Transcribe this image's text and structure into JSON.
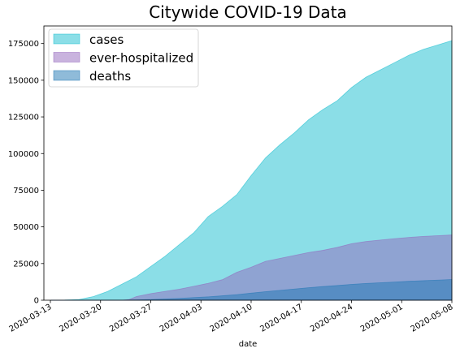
{
  "chart_data": {
    "type": "area",
    "stacked": false,
    "title": "Citywide COVID-19 Data",
    "xlabel": "date",
    "ylabel": "",
    "x_axis_type": "date",
    "xlim": [
      "2020-03-13",
      "2020-05-08"
    ],
    "ylim": [
      0,
      187000
    ],
    "yticks": [
      0,
      25000,
      50000,
      75000,
      100000,
      125000,
      150000,
      175000
    ],
    "ytick_labels": [
      "0",
      "25000",
      "50000",
      "75000",
      "100000",
      "125000",
      "150000",
      "175000"
    ],
    "xticks": [
      "2020-03-13",
      "2020-03-20",
      "2020-03-27",
      "2020-04-03",
      "2020-04-10",
      "2020-04-17",
      "2020-04-24",
      "2020-05-01",
      "2020-05-08"
    ],
    "grid": false,
    "legend_position": "upper-left",
    "series": [
      {
        "name": "cases",
        "color": "#17becf",
        "points": [
          [
            "2020-03-13",
            0
          ],
          [
            "2020-03-15",
            100
          ],
          [
            "2020-03-17",
            500
          ],
          [
            "2020-03-19",
            2500
          ],
          [
            "2020-03-21",
            6000
          ],
          [
            "2020-03-23",
            11000
          ],
          [
            "2020-03-25",
            16000
          ],
          [
            "2020-03-27",
            23000
          ],
          [
            "2020-03-29",
            30000
          ],
          [
            "2020-03-31",
            38000
          ],
          [
            "2020-04-02",
            46000
          ],
          [
            "2020-04-04",
            57000
          ],
          [
            "2020-04-06",
            64000
          ],
          [
            "2020-04-08",
            72000
          ],
          [
            "2020-04-10",
            85000
          ],
          [
            "2020-04-12",
            97000
          ],
          [
            "2020-04-14",
            106000
          ],
          [
            "2020-04-16",
            114000
          ],
          [
            "2020-04-18",
            123000
          ],
          [
            "2020-04-20",
            130000
          ],
          [
            "2020-04-22",
            136000
          ],
          [
            "2020-04-24",
            145000
          ],
          [
            "2020-04-26",
            152000
          ],
          [
            "2020-04-28",
            157000
          ],
          [
            "2020-04-30",
            162000
          ],
          [
            "2020-05-02",
            167000
          ],
          [
            "2020-05-04",
            171000
          ],
          [
            "2020-05-06",
            174000
          ],
          [
            "2020-05-08",
            177000
          ]
        ]
      },
      {
        "name": "ever-hospitalized",
        "color": "#9467bd",
        "points": [
          [
            "2020-03-13",
            0
          ],
          [
            "2020-03-15",
            0
          ],
          [
            "2020-03-17",
            0
          ],
          [
            "2020-03-19",
            0
          ],
          [
            "2020-03-21",
            0
          ],
          [
            "2020-03-23",
            0
          ],
          [
            "2020-03-24",
            500
          ],
          [
            "2020-03-25",
            2500
          ],
          [
            "2020-03-27",
            4500
          ],
          [
            "2020-03-29",
            6000
          ],
          [
            "2020-03-31",
            7500
          ],
          [
            "2020-04-02",
            9500
          ],
          [
            "2020-04-04",
            11500
          ],
          [
            "2020-04-06",
            14000
          ],
          [
            "2020-04-08",
            19000
          ],
          [
            "2020-04-10",
            22500
          ],
          [
            "2020-04-12",
            26500
          ],
          [
            "2020-04-14",
            28500
          ],
          [
            "2020-04-16",
            30500
          ],
          [
            "2020-04-18",
            32500
          ],
          [
            "2020-04-20",
            34000
          ],
          [
            "2020-04-22",
            36000
          ],
          [
            "2020-04-24",
            38500
          ],
          [
            "2020-04-26",
            40000
          ],
          [
            "2020-04-28",
            41000
          ],
          [
            "2020-04-30",
            42000
          ],
          [
            "2020-05-02",
            42800
          ],
          [
            "2020-05-04",
            43500
          ],
          [
            "2020-05-06",
            44000
          ],
          [
            "2020-05-08",
            44500
          ]
        ]
      },
      {
        "name": "deaths",
        "color": "#1f77b4",
        "points": [
          [
            "2020-03-13",
            0
          ],
          [
            "2020-03-15",
            0
          ],
          [
            "2020-03-17",
            0
          ],
          [
            "2020-03-19",
            0
          ],
          [
            "2020-03-21",
            0
          ],
          [
            "2020-03-23",
            0
          ],
          [
            "2020-03-25",
            200
          ],
          [
            "2020-03-27",
            500
          ],
          [
            "2020-03-29",
            800
          ],
          [
            "2020-03-31",
            1200
          ],
          [
            "2020-04-02",
            1800
          ],
          [
            "2020-04-04",
            2300
          ],
          [
            "2020-04-06",
            3000
          ],
          [
            "2020-04-08",
            3800
          ],
          [
            "2020-04-10",
            4800
          ],
          [
            "2020-04-12",
            5800
          ],
          [
            "2020-04-14",
            6700
          ],
          [
            "2020-04-16",
            7600
          ],
          [
            "2020-04-18",
            8500
          ],
          [
            "2020-04-20",
            9300
          ],
          [
            "2020-04-22",
            10000
          ],
          [
            "2020-04-24",
            10800
          ],
          [
            "2020-04-26",
            11400
          ],
          [
            "2020-04-28",
            11900
          ],
          [
            "2020-04-30",
            12400
          ],
          [
            "2020-05-02",
            12900
          ],
          [
            "2020-05-04",
            13300
          ],
          [
            "2020-05-06",
            13700
          ],
          [
            "2020-05-08",
            14100
          ]
        ]
      }
    ]
  }
}
